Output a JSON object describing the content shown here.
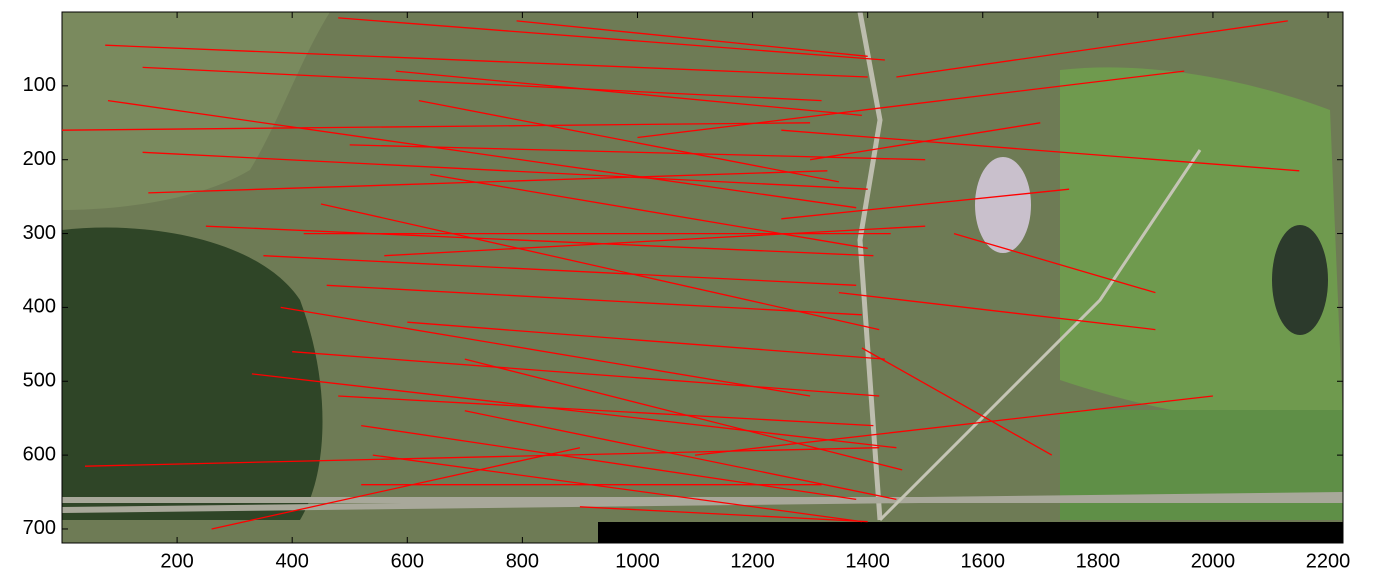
{
  "chart_data": {
    "type": "segments",
    "color": "#ff0000",
    "xlim": [
      0,
      2226
    ],
    "ylim": [
      0,
      719
    ],
    "y_reversed": true,
    "xticks": [
      200,
      400,
      600,
      800,
      1000,
      1200,
      1400,
      1600,
      1800,
      2000,
      2200
    ],
    "yticks": [
      100,
      200,
      300,
      400,
      500,
      600,
      700
    ],
    "segments": [
      {
        "x": [
          75,
          1400
        ],
        "y": [
          45,
          88
        ]
      },
      {
        "x": [
          480,
          1430
        ],
        "y": [
          8,
          65
        ]
      },
      {
        "x": [
          790,
          1400
        ],
        "y": [
          12,
          60
        ]
      },
      {
        "x": [
          2130,
          1450
        ],
        "y": [
          12,
          88
        ]
      },
      {
        "x": [
          140,
          1320
        ],
        "y": [
          75,
          120
        ]
      },
      {
        "x": [
          0,
          1300
        ],
        "y": [
          160,
          150
        ]
      },
      {
        "x": [
          140,
          1400
        ],
        "y": [
          190,
          240
        ]
      },
      {
        "x": [
          150,
          1330
        ],
        "y": [
          245,
          215
        ]
      },
      {
        "x": [
          250,
          1410
        ],
        "y": [
          290,
          330
        ]
      },
      {
        "x": [
          350,
          1380
        ],
        "y": [
          330,
          370
        ]
      },
      {
        "x": [
          1900,
          1350
        ],
        "y": [
          430,
          380
        ]
      },
      {
        "x": [
          420,
          1440
        ],
        "y": [
          300,
          300
        ]
      },
      {
        "x": [
          80,
          1380
        ],
        "y": [
          120,
          265
        ]
      },
      {
        "x": [
          500,
          1500
        ],
        "y": [
          180,
          200
        ]
      },
      {
        "x": [
          2150,
          1250
        ],
        "y": [
          215,
          160
        ]
      },
      {
        "x": [
          1950,
          1000
        ],
        "y": [
          80,
          170
        ]
      },
      {
        "x": [
          460,
          1390
        ],
        "y": [
          370,
          410
        ]
      },
      {
        "x": [
          400,
          1420
        ],
        "y": [
          460,
          520
        ]
      },
      {
        "x": [
          330,
          1450
        ],
        "y": [
          490,
          590
        ]
      },
      {
        "x": [
          1250,
          1750
        ],
        "y": [
          280,
          240
        ]
      },
      {
        "x": [
          1700,
          1300
        ],
        "y": [
          150,
          200
        ]
      },
      {
        "x": [
          480,
          1410
        ],
        "y": [
          520,
          560
        ]
      },
      {
        "x": [
          520,
          1380
        ],
        "y": [
          560,
          660
        ]
      },
      {
        "x": [
          40,
          1420
        ],
        "y": [
          615,
          590
        ]
      },
      {
        "x": [
          260,
          900
        ],
        "y": [
          700,
          590
        ]
      },
      {
        "x": [
          1720,
          1390
        ],
        "y": [
          600,
          455
        ]
      },
      {
        "x": [
          2000,
          1100
        ],
        "y": [
          520,
          600
        ]
      },
      {
        "x": [
          600,
          1430
        ],
        "y": [
          420,
          470
        ]
      },
      {
        "x": [
          700,
          1450
        ],
        "y": [
          540,
          660
        ]
      },
      {
        "x": [
          540,
          1390
        ],
        "y": [
          600,
          690
        ]
      },
      {
        "x": [
          580,
          1390
        ],
        "y": [
          80,
          140
        ]
      },
      {
        "x": [
          620,
          1350
        ],
        "y": [
          120,
          230
        ]
      },
      {
        "x": [
          450,
          1420
        ],
        "y": [
          260,
          430
        ]
      },
      {
        "x": [
          520,
          1320
        ],
        "y": [
          640,
          640
        ]
      },
      {
        "x": [
          900,
          1400
        ],
        "y": [
          670,
          690
        ]
      },
      {
        "x": [
          700,
          1460
        ],
        "y": [
          470,
          620
        ]
      },
      {
        "x": [
          380,
          1300
        ],
        "y": [
          400,
          520
        ]
      },
      {
        "x": [
          560,
          1500
        ],
        "y": [
          330,
          290
        ]
      },
      {
        "x": [
          640,
          1400
        ],
        "y": [
          220,
          320
        ]
      },
      {
        "x": [
          1550,
          1900
        ],
        "y": [
          300,
          380
        ]
      }
    ]
  }
}
